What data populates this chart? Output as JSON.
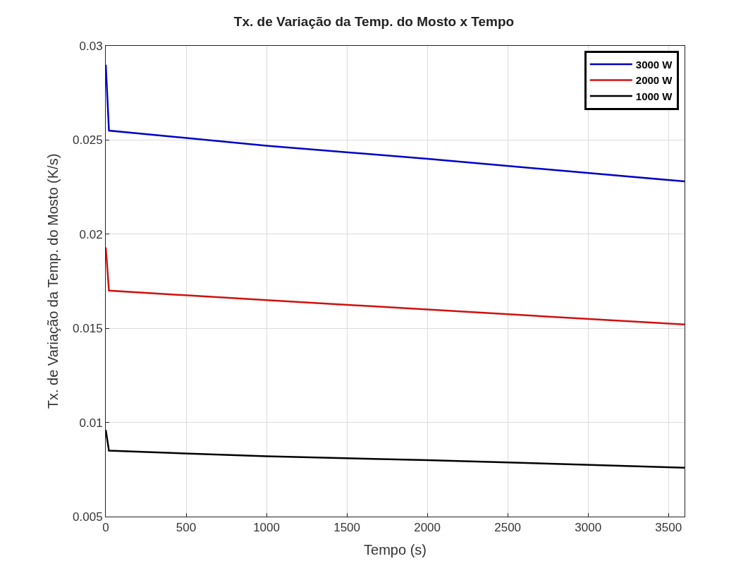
{
  "chart_data": {
    "type": "line",
    "title": "Tx. de Variação da Temp. do Mosto x Tempo",
    "xlabel": "Tempo (s)",
    "ylabel": "Tx. de Variação da Temp. do Mosto (K/s)",
    "xlim": [
      0,
      3600
    ],
    "xticks": [
      0,
      500,
      1000,
      1500,
      2000,
      2500,
      3000,
      3500
    ],
    "ylim": [
      0.005,
      0.03
    ],
    "yticks": [
      0.005,
      0.01,
      0.015,
      0.02,
      0.025,
      0.03
    ],
    "grid": true,
    "legend": "top right",
    "line_style": "solid",
    "marker": "none",
    "series": [
      {
        "name": "3000 W",
        "color": "#0000c8",
        "x": [
          0,
          20,
          1000,
          2000,
          3600
        ],
        "values": [
          0.029,
          0.0255,
          0.0247,
          0.024,
          0.0228
        ]
      },
      {
        "name": "2000 W",
        "color": "#d01010",
        "x": [
          0,
          20,
          1000,
          2000,
          3600
        ],
        "values": [
          0.0193,
          0.017,
          0.0165,
          0.016,
          0.0152
        ]
      },
      {
        "name": "1000 W",
        "color": "#000000",
        "x": [
          0,
          20,
          1000,
          2000,
          3600
        ],
        "values": [
          0.0096,
          0.0085,
          0.0082,
          0.008,
          0.0076
        ]
      }
    ]
  }
}
